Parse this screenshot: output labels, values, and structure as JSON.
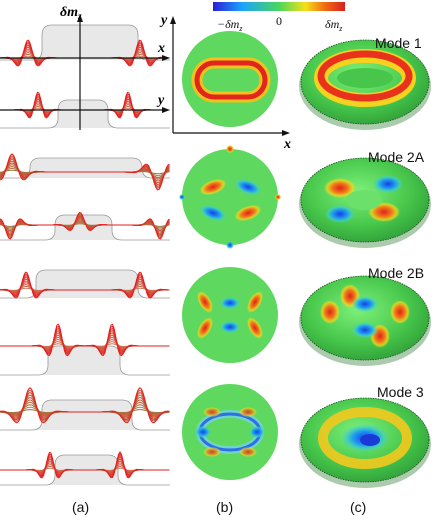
{
  "colorbar": {
    "neg_label": "−δm",
    "neg_sub": "z",
    "zero_label": "0",
    "pos_label": "δm",
    "pos_sub": "z",
    "colors": [
      "#2b1fd6",
      "#1aa3ff",
      "#49d65c",
      "#f4e11a",
      "#f06a12",
      "#d81f1f"
    ]
  },
  "axes_a": {
    "y_label": "δm",
    "y_sub": "z",
    "x_label": "x",
    "x2_label": "y"
  },
  "axes_b": {
    "y_label": "y",
    "x_label": "x"
  },
  "modes": [
    {
      "title": "Mode 1"
    },
    {
      "title": "Mode 2A"
    },
    {
      "title": "Mode 2B"
    },
    {
      "title": "Mode 3"
    }
  ],
  "panel_labels": {
    "a": "(a)",
    "b": "(b)",
    "c": "(c)"
  },
  "palette": {
    "green_bg": "#5bd65b",
    "red": "#e02d1e",
    "blue": "#1f57e6",
    "olive": "#8a8a2a",
    "gray_box": "#e6e6e6"
  }
}
